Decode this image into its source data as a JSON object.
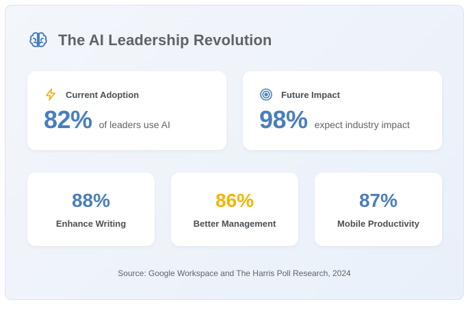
{
  "header": {
    "title": "The AI Leadership Revolution",
    "icon": "brain-icon"
  },
  "highlights": [
    {
      "icon": "lightning-icon",
      "title": "Current Adoption",
      "value": "82%",
      "description": "of leaders use AI"
    },
    {
      "icon": "target-icon",
      "title": "Future Impact",
      "value": "98%",
      "description": "expect industry impact"
    }
  ],
  "stats": [
    {
      "value": "88%",
      "label": "Enhance Writing",
      "color": "#4a7ebb"
    },
    {
      "value": "86%",
      "label": "Better Management",
      "color": "#f4b400"
    },
    {
      "value": "87%",
      "label": "Mobile Productivity",
      "color": "#4a7ebb"
    }
  ],
  "footer": {
    "source": "Source: Google Workspace and The Harris Poll Research, 2024"
  },
  "colors": {
    "accent_blue": "#4a7ebb",
    "accent_yellow": "#f4b400",
    "text_gray": "#5f6368"
  }
}
